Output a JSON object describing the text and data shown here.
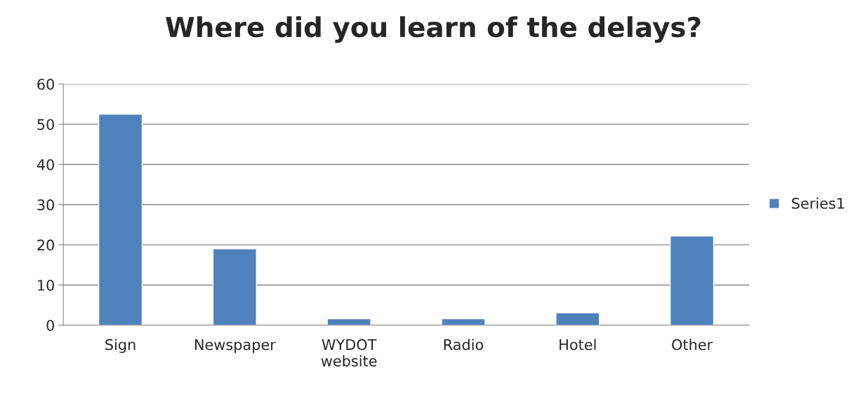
{
  "chart_data": {
    "type": "bar",
    "title": "Where did you learn of the delays?",
    "categories": [
      "Sign",
      "Newspaper",
      "WYDOT\nwebsite",
      "Radio",
      "Hotel",
      "Other"
    ],
    "series": [
      {
        "name": "Series1",
        "color": "#4f81bd",
        "values": [
          52.5,
          19.0,
          1.6,
          1.6,
          3.1,
          22.2
        ]
      }
    ],
    "ylim": [
      0,
      60
    ],
    "yticks": [
      0,
      10,
      20,
      30,
      40,
      50,
      60
    ],
    "grid": "y",
    "legend": "right"
  }
}
